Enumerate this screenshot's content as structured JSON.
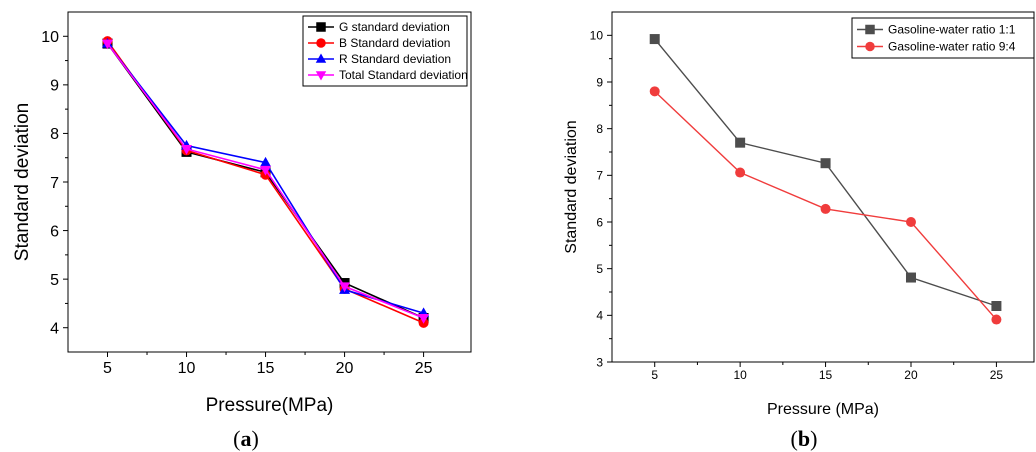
{
  "chart_data": [
    {
      "panel_label": "a",
      "type": "line",
      "xlabel": "Pressure(MPa)",
      "ylabel": "Standard deviation",
      "xlim": [
        2.5,
        28
      ],
      "ylim": [
        3.5,
        10.5
      ],
      "xticks": [
        5,
        10,
        15,
        20,
        25
      ],
      "yticks": [
        4,
        5,
        6,
        7,
        8,
        9,
        10
      ],
      "grid": false,
      "legend_position": "top-right",
      "x": [
        5,
        10,
        15,
        20,
        25
      ],
      "series": [
        {
          "name": "G standard deviation",
          "color": "#000000",
          "marker": "square",
          "values": [
            9.85,
            7.62,
            7.2,
            4.92,
            4.2
          ]
        },
        {
          "name": "B Standard deviation",
          "color": "#ff0000",
          "marker": "circle",
          "values": [
            9.9,
            7.65,
            7.15,
            4.8,
            4.1
          ]
        },
        {
          "name": "R Standard deviation",
          "color": "#0000ff",
          "marker": "triangle-up",
          "values": [
            9.85,
            7.75,
            7.4,
            4.78,
            4.3
          ]
        },
        {
          "name": "Total Standard deviation",
          "color": "#ff00ff",
          "marker": "triangle-down",
          "values": [
            9.85,
            7.68,
            7.25,
            4.85,
            4.2
          ]
        }
      ]
    },
    {
      "panel_label": "b",
      "type": "line",
      "xlabel": "Pressure (MPa)",
      "ylabel": "Standard deviation",
      "xlim": [
        2.5,
        27.2
      ],
      "ylim": [
        3,
        10.5
      ],
      "xticks": [
        5,
        10,
        15,
        20,
        25
      ],
      "yticks": [
        3,
        4,
        5,
        6,
        7,
        8,
        9,
        10
      ],
      "grid": false,
      "legend_position": "top-right",
      "x": [
        5,
        10,
        15,
        20,
        25
      ],
      "series": [
        {
          "name": "Gasoline-water ratio  1:1",
          "color": "#4d4d4d",
          "marker": "square",
          "values": [
            9.92,
            7.7,
            7.26,
            4.81,
            4.2
          ]
        },
        {
          "name": "Gasoline-water ratio  9:4",
          "color": "#f03c3c",
          "marker": "circle",
          "values": [
            8.8,
            7.06,
            6.28,
            6.0,
            3.91
          ]
        }
      ]
    }
  ],
  "captions": [
    {
      "open": "(",
      "letter": "a",
      "close": ")"
    },
    {
      "open": "(",
      "letter": "b",
      "close": ")"
    }
  ]
}
